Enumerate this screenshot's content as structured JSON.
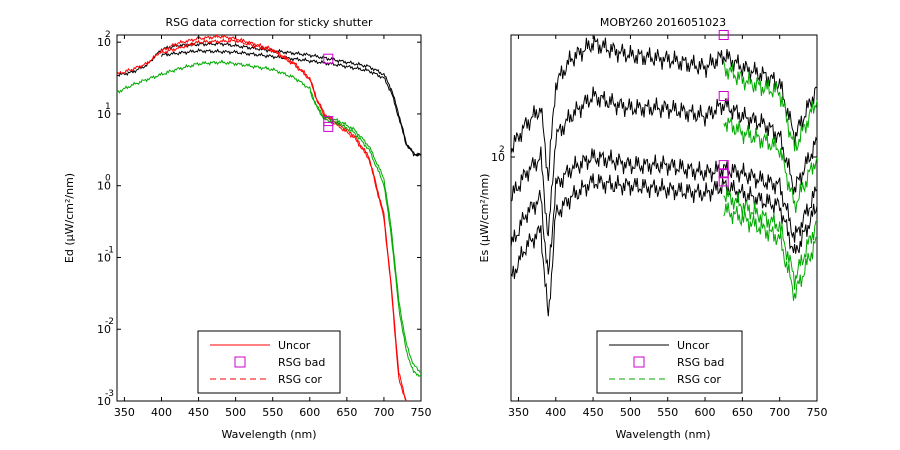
{
  "chart_data": [
    {
      "type": "line",
      "title": "RSG data correction for sticky shutter",
      "xlabel": "Wavelength (nm)",
      "ylabel": "Ed (µW/cm²/nm)",
      "xlim": [
        340,
        750
      ],
      "ylim_log10": [
        -3,
        2.1
      ],
      "yscale": "log",
      "x_ticks": [
        "350",
        "400",
        "450",
        "500",
        "550",
        "600",
        "650",
        "700",
        "750"
      ],
      "y_ticks": [
        {
          "base": "10",
          "exp": "-3"
        },
        {
          "base": "10",
          "exp": "-2"
        },
        {
          "base": "10",
          "exp": "-1"
        },
        {
          "base": "10",
          "exp": "0"
        },
        {
          "base": "10",
          "exp": "1"
        },
        {
          "base": "10",
          "exp": "2"
        }
      ],
      "legend": {
        "position": "bottom-center",
        "entries": [
          {
            "label": "Uncor",
            "style": "red-solid"
          },
          {
            "label": "RSG bad",
            "style": "magenta-square"
          },
          {
            "label": "RSG cor",
            "style": "red-dashed"
          }
        ]
      },
      "colors": {
        "uncor": "#ff0000",
        "corrected": "#00aa00",
        "reference": "#000000",
        "bad": "#cc00cc"
      },
      "series": [
        {
          "style": "black",
          "log10_ed": [
            [
              340,
              1.54
            ],
            [
              360,
              1.58
            ],
            [
              380,
              1.68
            ],
            [
              400,
              1.9
            ],
            [
              420,
              1.95
            ],
            [
              450,
              1.97
            ],
            [
              480,
              1.98
            ],
            [
              500,
              1.95
            ],
            [
              550,
              1.88
            ],
            [
              600,
              1.82
            ],
            [
              640,
              1.74
            ],
            [
              660,
              1.7
            ],
            [
              680,
              1.66
            ],
            [
              700,
              1.55
            ],
            [
              710,
              1.35
            ],
            [
              720,
              1.0
            ],
            [
              730,
              0.6
            ],
            [
              740,
              0.45
            ],
            [
              750,
              0.43
            ]
          ]
        },
        {
          "style": "black",
          "log10_ed": [
            [
              400,
              1.82
            ],
            [
              450,
              1.88
            ],
            [
              500,
              1.86
            ],
            [
              550,
              1.8
            ],
            [
              600,
              1.74
            ],
            [
              640,
              1.68
            ],
            [
              660,
              1.64
            ],
            [
              680,
              1.6
            ],
            [
              700,
              1.5
            ],
            [
              710,
              1.3
            ],
            [
              720,
              0.95
            ],
            [
              730,
              0.58
            ],
            [
              740,
              0.44
            ],
            [
              750,
              0.42
            ]
          ]
        },
        {
          "style": "red",
          "log10_ed": [
            [
              340,
              1.55
            ],
            [
              360,
              1.62
            ],
            [
              380,
              1.7
            ],
            [
              400,
              1.88
            ],
            [
              420,
              1.98
            ],
            [
              450,
              2.05
            ],
            [
              480,
              2.08
            ],
            [
              500,
              2.05
            ],
            [
              550,
              1.9
            ],
            [
              580,
              1.7
            ],
            [
              600,
              1.5
            ],
            [
              610,
              1.2
            ],
            [
              620,
              1.0
            ],
            [
              640,
              0.85
            ],
            [
              660,
              0.7
            ],
            [
              680,
              0.4
            ],
            [
              700,
              -0.4
            ],
            [
              710,
              -1.4
            ],
            [
              720,
              -2.6
            ],
            [
              730,
              -3.0
            ]
          ]
        },
        {
          "style": "red",
          "log10_ed": [
            [
              400,
              1.85
            ],
            [
              450,
              2.0
            ],
            [
              500,
              2.02
            ],
            [
              550,
              1.88
            ],
            [
              580,
              1.68
            ],
            [
              600,
              1.48
            ],
            [
              610,
              1.18
            ],
            [
              620,
              0.97
            ],
            [
              640,
              0.82
            ],
            [
              660,
              0.67
            ],
            [
              680,
              0.37
            ],
            [
              700,
              -0.45
            ],
            [
              710,
              -1.45
            ],
            [
              720,
              -2.7
            ],
            [
              730,
              -3.0
            ]
          ]
        },
        {
          "style": "green",
          "log10_ed": [
            [
              340,
              1.3
            ],
            [
              360,
              1.4
            ],
            [
              380,
              1.48
            ],
            [
              400,
              1.55
            ],
            [
              420,
              1.62
            ],
            [
              450,
              1.7
            ],
            [
              480,
              1.72
            ],
            [
              500,
              1.7
            ],
            [
              550,
              1.62
            ],
            [
              580,
              1.5
            ],
            [
              600,
              1.35
            ],
            [
              610,
              1.1
            ],
            [
              620,
              0.95
            ],
            [
              640,
              0.9
            ],
            [
              660,
              0.78
            ],
            [
              680,
              0.55
            ],
            [
              700,
              0.1
            ],
            [
              710,
              -0.6
            ],
            [
              720,
              -1.6
            ],
            [
              730,
              -2.2
            ],
            [
              740,
              -2.5
            ],
            [
              750,
              -2.6
            ]
          ]
        },
        {
          "style": "green",
          "log10_ed": [
            [
              600,
              1.32
            ],
            [
              610,
              1.08
            ],
            [
              620,
              0.92
            ],
            [
              640,
              0.86
            ],
            [
              660,
              0.74
            ],
            [
              680,
              0.5
            ],
            [
              700,
              0.02
            ],
            [
              710,
              -0.7
            ],
            [
              720,
              -1.7
            ],
            [
              730,
              -2.3
            ],
            [
              740,
              -2.6
            ],
            [
              750,
              -2.65
            ]
          ]
        }
      ],
      "bad_points": [
        [
          625,
          1.77
        ],
        [
          625,
          0.9
        ],
        [
          625,
          0.82
        ]
      ]
    },
    {
      "type": "line",
      "title": "MOBY260  2016051023",
      "xlabel": "Wavelength (nm)",
      "ylabel": "Es (µW/cm²/nm)",
      "xlim": [
        340,
        750
      ],
      "yscale": "log",
      "x_ticks": [
        "350",
        "400",
        "450",
        "500",
        "550",
        "600",
        "650",
        "700",
        "750"
      ],
      "y_ticks": [
        {
          "base": "10",
          "exp": "2"
        }
      ],
      "legend": {
        "position": "bottom-center",
        "entries": [
          {
            "label": "Uncor",
            "style": "black-solid"
          },
          {
            "label": "RSG bad",
            "style": "magenta-square"
          },
          {
            "label": "RSG cor",
            "style": "green-dashed"
          }
        ]
      },
      "series": [
        {
          "style": "black",
          "log10_es": [
            [
              340,
              2.02
            ],
            [
              360,
              2.08
            ],
            [
              380,
              2.12
            ],
            [
              390,
              1.95
            ],
            [
              400,
              2.18
            ],
            [
              420,
              2.24
            ],
            [
              450,
              2.28
            ],
            [
              480,
              2.26
            ],
            [
              500,
              2.25
            ],
            [
              550,
              2.24
            ],
            [
              600,
              2.22
            ],
            [
              625,
              2.25
            ],
            [
              650,
              2.22
            ],
            [
              680,
              2.2
            ],
            [
              700,
              2.18
            ],
            [
              720,
              2.05
            ],
            [
              750,
              2.17
            ]
          ]
        },
        {
          "style": "black",
          "log10_es": [
            [
              340,
              1.9
            ],
            [
              360,
              1.96
            ],
            [
              380,
              2.0
            ],
            [
              390,
              1.8
            ],
            [
              400,
              2.05
            ],
            [
              420,
              2.1
            ],
            [
              450,
              2.15
            ],
            [
              480,
              2.13
            ],
            [
              500,
              2.12
            ],
            [
              550,
              2.12
            ],
            [
              600,
              2.1
            ],
            [
              625,
              2.13
            ],
            [
              650,
              2.1
            ],
            [
              680,
              2.08
            ],
            [
              700,
              2.05
            ],
            [
              720,
              1.92
            ],
            [
              750,
              2.04
            ]
          ]
        },
        {
          "style": "black",
          "log10_es": [
            [
              340,
              1.78
            ],
            [
              360,
              1.86
            ],
            [
              380,
              1.9
            ],
            [
              390,
              1.7
            ],
            [
              400,
              1.93
            ],
            [
              420,
              1.97
            ],
            [
              450,
              2.0
            ],
            [
              480,
              1.99
            ],
            [
              500,
              1.98
            ],
            [
              550,
              1.98
            ],
            [
              600,
              1.96
            ],
            [
              625,
              1.97
            ],
            [
              650,
              1.96
            ],
            [
              680,
              1.94
            ],
            [
              700,
              1.93
            ],
            [
              720,
              1.8
            ],
            [
              750,
              1.92
            ]
          ]
        },
        {
          "style": "black",
          "log10_es": [
            [
              340,
              1.7
            ],
            [
              360,
              1.78
            ],
            [
              380,
              1.82
            ],
            [
              390,
              1.6
            ],
            [
              400,
              1.86
            ],
            [
              420,
              1.9
            ],
            [
              450,
              1.94
            ],
            [
              480,
              1.93
            ],
            [
              500,
              1.93
            ],
            [
              550,
              1.92
            ],
            [
              600,
              1.91
            ],
            [
              625,
              1.93
            ],
            [
              650,
              1.91
            ],
            [
              680,
              1.89
            ],
            [
              700,
              1.88
            ],
            [
              720,
              1.76
            ],
            [
              750,
              1.88
            ]
          ]
        },
        {
          "style": "green",
          "log10_es": [
            [
              625,
              2.22
            ],
            [
              650,
              2.19
            ],
            [
              680,
              2.17
            ],
            [
              700,
              2.16
            ],
            [
              720,
              2.02
            ],
            [
              750,
              2.14
            ]
          ]
        },
        {
          "style": "green",
          "log10_es": [
            [
              625,
              2.09
            ],
            [
              650,
              2.06
            ],
            [
              680,
              2.04
            ],
            [
              700,
              2.02
            ],
            [
              720,
              1.88
            ],
            [
              750,
              2.0
            ]
          ]
        },
        {
          "style": "green",
          "log10_es": [
            [
              625,
              1.91
            ],
            [
              650,
              1.88
            ],
            [
              680,
              1.85
            ],
            [
              700,
              1.83
            ],
            [
              720,
              1.7
            ],
            [
              750,
              1.84
            ]
          ]
        },
        {
          "style": "green",
          "log10_es": [
            [
              625,
              1.87
            ],
            [
              650,
              1.85
            ],
            [
              680,
              1.82
            ],
            [
              700,
              1.8
            ],
            [
              720,
              1.66
            ],
            [
              750,
              1.8
            ]
          ]
        }
      ],
      "ylim_log10": [
        1.4,
        2.3
      ],
      "bad_points": [
        [
          625,
          2.3
        ],
        [
          625,
          2.15
        ],
        [
          625,
          1.98
        ],
        [
          625,
          1.96
        ],
        [
          625,
          1.94
        ]
      ]
    }
  ]
}
